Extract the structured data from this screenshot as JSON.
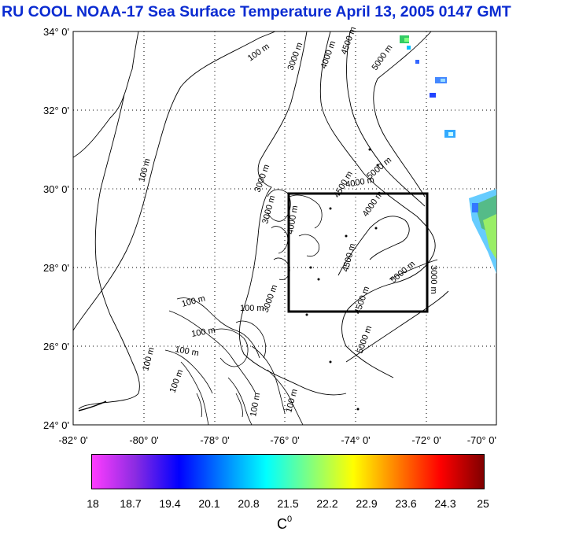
{
  "title": "RU COOL  NOAA-17 Sea Surface Temperature April 13, 2005 0147 GMT",
  "map": {
    "lat_labels": [
      "34° 0'",
      "32° 0'",
      "30° 0'",
      "28° 0'",
      "26° 0'",
      "24° 0'"
    ],
    "lon_labels": [
      "-82° 0'",
      "-80° 0'",
      "-78° 0'",
      "-76° 0'",
      "-74° 0'",
      "-72° 0'",
      "-70° 0'"
    ],
    "lat_range": [
      24,
      34
    ],
    "lon_range": [
      -82,
      -70
    ],
    "grid": "dotted",
    "study_box": {
      "lon": [
        -76,
        -72
      ],
      "lat": [
        27,
        30
      ]
    },
    "contour_labels": [
      "100 m",
      "3000 m",
      "4000 m",
      "4500 m",
      "5000 m",
      "100 m",
      "3000 m",
      "5000 m",
      "4000 m",
      "4500 m",
      "4000 m",
      "4500 m",
      "3000 m",
      "5000 m",
      "4000 m",
      "3000 m",
      "100 m",
      "100 m",
      "100 m",
      "100 m",
      "100 m",
      "100 m",
      "5000 m",
      "3000 m",
      "100 m",
      "100 m",
      "4500 m"
    ]
  },
  "colorbar": {
    "ticks": [
      "18",
      "18.7",
      "19.4",
      "20.1",
      "20.8",
      "21.5",
      "22.2",
      "22.9",
      "23.6",
      "24.3",
      "25"
    ],
    "range": [
      18,
      25
    ],
    "unit_base": "C",
    "unit_sup": "0",
    "colors": [
      "#ff3cff",
      "#8a2be2",
      "#0000ff",
      "#0080ff",
      "#00ffff",
      "#80ff80",
      "#ffff00",
      "#ff8000",
      "#ff0000",
      "#800000"
    ]
  }
}
